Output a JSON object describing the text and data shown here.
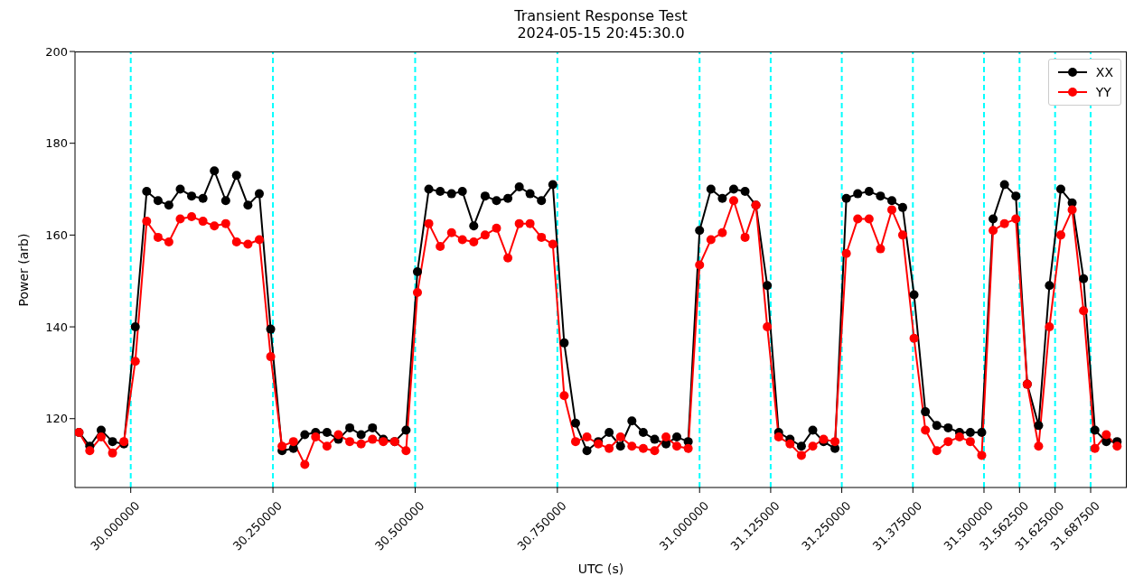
{
  "chart_data": {
    "type": "line",
    "title": "Transient Response Test",
    "subtitle": "2024-05-15 20:45:30.0",
    "xlabel": "UTC (s)",
    "ylabel": "Power (arb)",
    "x": [
      29.909,
      29.928,
      29.948,
      29.968,
      29.988,
      30.008,
      30.028,
      30.048,
      30.067,
      30.087,
      30.107,
      30.127,
      30.147,
      30.167,
      30.186,
      30.206,
      30.226,
      30.246,
      30.266,
      30.286,
      30.306,
      30.325,
      30.345,
      30.365,
      30.385,
      30.405,
      30.425,
      30.444,
      30.464,
      30.484,
      30.504,
      30.524,
      30.544,
      30.564,
      30.583,
      30.603,
      30.623,
      30.643,
      30.663,
      30.683,
      30.702,
      30.722,
      30.742,
      30.762,
      30.782,
      30.802,
      30.822,
      30.841,
      30.861,
      30.881,
      30.901,
      30.921,
      30.941,
      30.96,
      30.98,
      31.0,
      31.02,
      31.04,
      31.06,
      31.08,
      31.099,
      31.119,
      31.139,
      31.159,
      31.179,
      31.199,
      31.218,
      31.238,
      31.258,
      31.278,
      31.298,
      31.318,
      31.338,
      31.357,
      31.377,
      31.397,
      31.417,
      31.437,
      31.457,
      31.476,
      31.496,
      31.516,
      31.536,
      31.556,
      31.576,
      31.596,
      31.615,
      31.635,
      31.655,
      31.675,
      31.695,
      31.715,
      31.734
    ],
    "series": [
      {
        "name": "XX",
        "color": "#000000",
        "values": [
          117,
          114,
          117.5,
          115,
          114.5,
          140,
          169.5,
          167.5,
          166.5,
          170,
          168.5,
          168,
          174,
          167.5,
          173,
          166.5,
          169,
          139.5,
          113,
          113.5,
          116.5,
          117,
          117,
          115.5,
          118,
          116.5,
          118,
          115.5,
          115,
          117.5,
          152,
          170,
          169.5,
          169,
          169.5,
          162,
          168.5,
          167.5,
          168,
          170.5,
          169,
          167.5,
          171,
          136.5,
          119,
          113,
          115,
          117,
          114,
          119.5,
          117,
          115.5,
          114.5,
          116,
          115,
          161,
          170,
          168,
          170,
          169.5,
          166.5,
          149,
          117,
          115.5,
          114,
          117.5,
          115,
          113.5,
          168,
          169,
          169.5,
          168.5,
          167.5,
          166,
          147,
          121.5,
          118.5,
          118,
          117,
          117,
          117,
          163.5,
          171,
          168.5,
          127.5,
          118.5,
          149,
          170,
          167,
          150.5,
          117.5,
          115,
          115
        ]
      },
      {
        "name": "YY",
        "color": "#ff0000",
        "values": [
          117,
          113,
          116,
          112.5,
          115,
          132.5,
          163,
          159.5,
          158.5,
          163.5,
          164,
          163,
          162,
          162.5,
          158.5,
          158,
          159,
          133.5,
          114,
          115,
          110,
          116,
          114,
          116.5,
          115,
          114.5,
          115.5,
          115,
          115,
          113,
          147.5,
          162.5,
          157.5,
          160.5,
          159,
          158.5,
          160,
          161.5,
          155,
          162.5,
          162.5,
          159.5,
          158,
          125,
          115,
          116,
          114.5,
          113.5,
          116,
          114,
          113.5,
          113,
          116,
          114,
          113.5,
          153.5,
          159,
          160.5,
          167.5,
          159.5,
          166.5,
          140,
          116,
          114.5,
          112,
          114,
          115.5,
          115,
          156,
          163.5,
          163.5,
          157,
          165.5,
          160,
          137.5,
          117.5,
          113,
          115,
          116,
          115,
          112,
          161,
          162.5,
          163.5,
          127.5,
          114,
          140,
          160,
          165.5,
          143.5,
          113.5,
          116.5,
          114
        ]
      }
    ],
    "xlim": [
      29.902,
      31.751
    ],
    "xticks": [
      {
        "value": 30,
        "label": "30.000000"
      },
      {
        "value": 30.25,
        "label": "30.250000"
      },
      {
        "value": 30.5,
        "label": "30.500000"
      },
      {
        "value": 30.75,
        "label": "30.750000"
      },
      {
        "value": 31,
        "label": "31.000000"
      },
      {
        "value": 31.125,
        "label": "31.125000"
      },
      {
        "value": 31.25,
        "label": "31.250000"
      },
      {
        "value": 31.375,
        "label": "31.375000"
      },
      {
        "value": 31.5,
        "label": "31.500000"
      },
      {
        "value": 31.5625,
        "label": "31.562500"
      },
      {
        "value": 31.625,
        "label": "31.625000"
      },
      {
        "value": 31.6875,
        "label": "31.687500"
      }
    ],
    "ylim": [
      105,
      200
    ],
    "yticks": [
      120,
      140,
      160,
      180,
      200
    ],
    "ref_lines": [
      {
        "axis": "x",
        "value": 30,
        "color": "#00ffff",
        "line_style": "dashed"
      },
      {
        "axis": "x",
        "value": 30.25,
        "color": "#00ffff",
        "line_style": "dashed"
      },
      {
        "axis": "x",
        "value": 30.5,
        "color": "#00ffff",
        "line_style": "dashed"
      },
      {
        "axis": "x",
        "value": 30.75,
        "color": "#00ffff",
        "line_style": "dashed"
      },
      {
        "axis": "x",
        "value": 31,
        "color": "#00ffff",
        "line_style": "dashed"
      },
      {
        "axis": "x",
        "value": 31.125,
        "color": "#00ffff",
        "line_style": "dashed"
      },
      {
        "axis": "x",
        "value": 31.25,
        "color": "#00ffff",
        "line_style": "dashed"
      },
      {
        "axis": "x",
        "value": 31.375,
        "color": "#00ffff",
        "line_style": "dashed"
      },
      {
        "axis": "x",
        "value": 31.5,
        "color": "#00ffff",
        "line_style": "dashed"
      },
      {
        "axis": "x",
        "value": 31.5625,
        "color": "#00ffff",
        "line_style": "dashed"
      },
      {
        "axis": "x",
        "value": 31.625,
        "color": "#00ffff",
        "line_style": "dashed"
      },
      {
        "axis": "x",
        "value": 31.6875,
        "color": "#00ffff",
        "line_style": "dashed"
      }
    ],
    "legend": "top right",
    "marker": "circle",
    "line_style": "solid"
  }
}
